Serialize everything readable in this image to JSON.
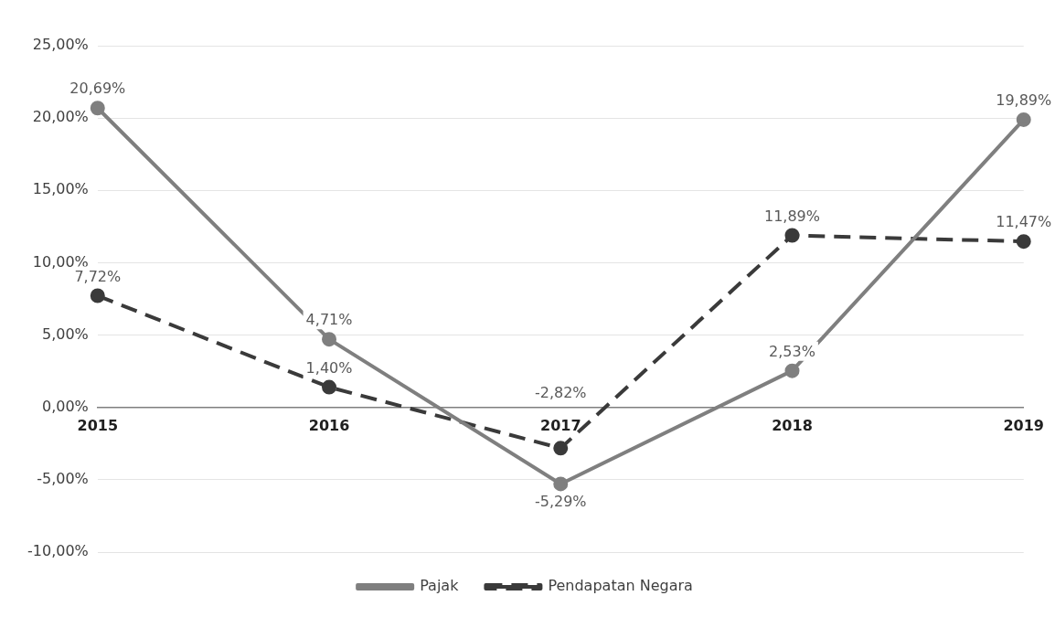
{
  "chart_data": {
    "type": "line",
    "categories": [
      "2015",
      "2016",
      "2017",
      "2018",
      "2019"
    ],
    "series": [
      {
        "name": "Pajak",
        "color": "#7f7f7f",
        "values": [
          20.69,
          4.71,
          -5.29,
          2.53,
          19.89
        ],
        "value_labels": [
          "20,69%",
          "4,71%",
          "-5,29%",
          "2,53%",
          "19,89%"
        ],
        "line_style": "solid"
      },
      {
        "name": "Pendapatan Negara",
        "color": "#3a3a3a",
        "values": [
          7.72,
          1.4,
          -2.82,
          11.89,
          11.47
        ],
        "value_labels": [
          "7,72%",
          "1,40%",
          "-2,82%",
          "11,89%",
          "11,47%"
        ],
        "line_style": "dashed"
      }
    ],
    "ylim": [
      -10,
      25
    ],
    "yticks": [
      {
        "value": -10,
        "label": "-10,00%"
      },
      {
        "value": -5,
        "label": "-5,00%"
      },
      {
        "value": 0,
        "label": "0,00%"
      },
      {
        "value": 5,
        "label": "5,00%"
      },
      {
        "value": 10,
        "label": "10,00%"
      },
      {
        "value": 15,
        "label": "15,00%"
      },
      {
        "value": 20,
        "label": "20,00%"
      },
      {
        "value": 25,
        "label": "25,00%"
      }
    ],
    "grid": "y",
    "legend": "bottom",
    "marker": "circle"
  }
}
